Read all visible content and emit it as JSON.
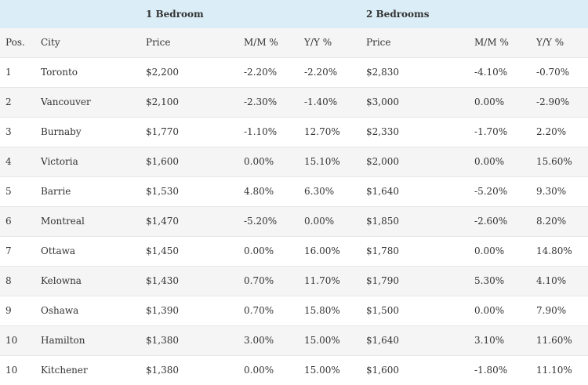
{
  "group_headers": {
    "one_bedroom": "1 Bedroom",
    "two_bedrooms": "2 Bedrooms"
  },
  "columns": [
    "Pos.",
    "City",
    "Price",
    "M/M %",
    "Y/Y %",
    "Price",
    "M/M %",
    "Y/Y %"
  ],
  "rows": [
    [
      "1",
      "Toronto",
      "$2,200",
      "-2.20%",
      "-2.20%",
      "$2,830",
      "-4.10%",
      "-0.70%"
    ],
    [
      "2",
      "Vancouver",
      "$2,100",
      "-2.30%",
      "-1.40%",
      "$3,000",
      "0.00%",
      "-2.90%"
    ],
    [
      "3",
      "Burnaby",
      "$1,770",
      "-1.10%",
      "12.70%",
      "$2,330",
      "-1.70%",
      "2.20%"
    ],
    [
      "4",
      "Victoria",
      "$1,600",
      "0.00%",
      "15.10%",
      "$2,000",
      "0.00%",
      "15.60%"
    ],
    [
      "5",
      "Barrie",
      "$1,530",
      "4.80%",
      "6.30%",
      "$1,640",
      "-5.20%",
      "9.30%"
    ],
    [
      "6",
      "Montreal",
      "$1,470",
      "-5.20%",
      "0.00%",
      "$1,850",
      "-2.60%",
      "8.20%"
    ],
    [
      "7",
      "Ottawa",
      "$1,450",
      "0.00%",
      "16.00%",
      "$1,780",
      "0.00%",
      "14.80%"
    ],
    [
      "8",
      "Kelowna",
      "$1,430",
      "0.70%",
      "11.70%",
      "$1,790",
      "5.30%",
      "4.10%"
    ],
    [
      "9",
      "Oshawa",
      "$1,390",
      "0.70%",
      "15.80%",
      "$1,500",
      "0.00%",
      "7.90%"
    ],
    [
      "10",
      "Hamilton",
      "$1,380",
      "3.00%",
      "15.00%",
      "$1,640",
      "3.10%",
      "11.60%"
    ],
    [
      "10",
      "Kitchener",
      "$1,380",
      "0.00%",
      "15.00%",
      "$1,600",
      "-1.80%",
      "11.10%"
    ]
  ],
  "colors": {
    "group_header_bg": "#dbeef7",
    "stripe_bg": "#f5f5f5",
    "text": "#333333"
  }
}
